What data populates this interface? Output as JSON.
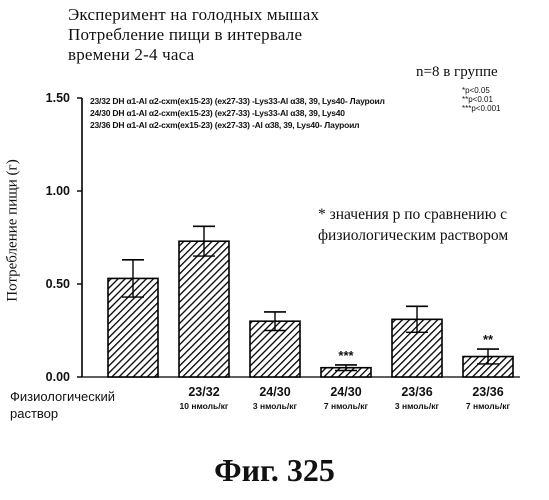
{
  "titles": {
    "line1": "Эксперимент на голодных мышах",
    "line2": "Потребление пищи в интервале",
    "line3": "времени 2-4 часа"
  },
  "group_size": "n=8 в группе",
  "significance_legend": [
    "*p<0.05",
    "**p<0.01",
    "***p<0.001"
  ],
  "compound_descriptions": [
    "23/32 DH α1-Al α2-cxm(ex15-23) (ex27-33) -Lys33-Al α38, 39, Lys40- Лауроил",
    "24/30 DH α1-Al α2-cxm(ex15-23) (ex27-33) -Lys33-Al α38, 39, Lys40",
    "23/36 DH α1-Al α2-cxm(ex15-23) (ex27-33) -Al α38, 39, Lys40- Лауроил"
  ],
  "note": {
    "line1": "* значения р по сравнению с",
    "line2": "физиологическим раствором"
  },
  "control_label": {
    "line1": "Физиологический",
    "line2": "раствор"
  },
  "figure_caption": "Фиг. 325",
  "chart_data": {
    "type": "bar",
    "ylabel": "Потребление пищи (г)",
    "ylim": [
      0,
      1.5
    ],
    "yticks": [
      "0.00",
      "0.50",
      "1.00",
      "1.50"
    ],
    "grid": false,
    "categories": [
      {
        "label": "",
        "sub": ""
      },
      {
        "label": "23/32",
        "sub": "10 нмоль/кг"
      },
      {
        "label": "24/30",
        "sub": "3 нмоль/кг"
      },
      {
        "label": "24/30",
        "sub": "7 нмоль/кг"
      },
      {
        "label": "23/36",
        "sub": "3 нмоль/кг"
      },
      {
        "label": "23/36",
        "sub": "7 нмоль/кг"
      }
    ],
    "values": [
      0.53,
      0.73,
      0.3,
      0.05,
      0.31,
      0.11
    ],
    "errors": [
      0.1,
      0.08,
      0.05,
      0.015,
      0.07,
      0.04
    ],
    "significance": [
      "",
      "",
      "",
      "***",
      "",
      "**"
    ],
    "bar_color": "#000000",
    "hatch": "diagonal"
  }
}
